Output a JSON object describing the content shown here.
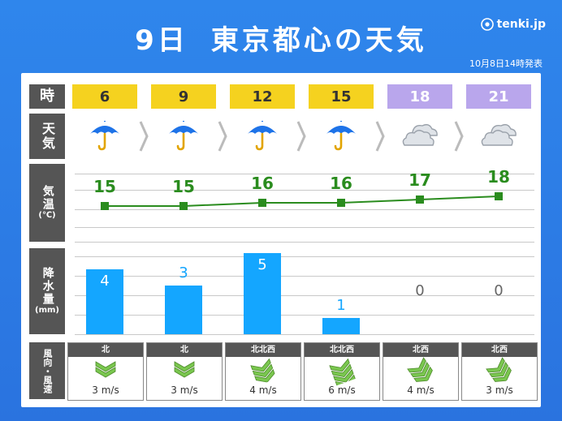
{
  "title": {
    "day": "9日",
    "place": "東京都心の天気"
  },
  "brand": {
    "name": "tenki.jp"
  },
  "issued": "10月8日14時発表",
  "labels": {
    "time": "時",
    "weather": "天気",
    "temp": "気温",
    "temp_unit": "(℃)",
    "precip": "降水量",
    "precip_unit": "(mm)",
    "wind": "風向・風速"
  },
  "hours": [
    "6",
    "9",
    "12",
    "15",
    "18",
    "21"
  ],
  "weather_icons": [
    "umbrella-icon",
    "umbrella-icon",
    "umbrella-icon",
    "umbrella-icon",
    "cloud-icon",
    "cloud-icon"
  ],
  "temps": [
    "15",
    "15",
    "16",
    "16",
    "17",
    "18"
  ],
  "precip": [
    "4",
    "3",
    "5",
    "1",
    "0",
    "0"
  ],
  "wind_dirs": [
    "北",
    "北",
    "北北西",
    "北北西",
    "北西",
    "北西"
  ],
  "wind_speeds": [
    "3 m/s",
    "3 m/s",
    "4 m/s",
    "6 m/s",
    "4 m/s",
    "3 m/s"
  ],
  "colors": {
    "day_header": "#f5d21f",
    "night_header": "#b9a6ec",
    "temp_line": "#2a8c1e",
    "precip_bar": "#14a6ff",
    "umbrella": "#1e73e8",
    "wind_icon": "#7ac74f"
  }
}
